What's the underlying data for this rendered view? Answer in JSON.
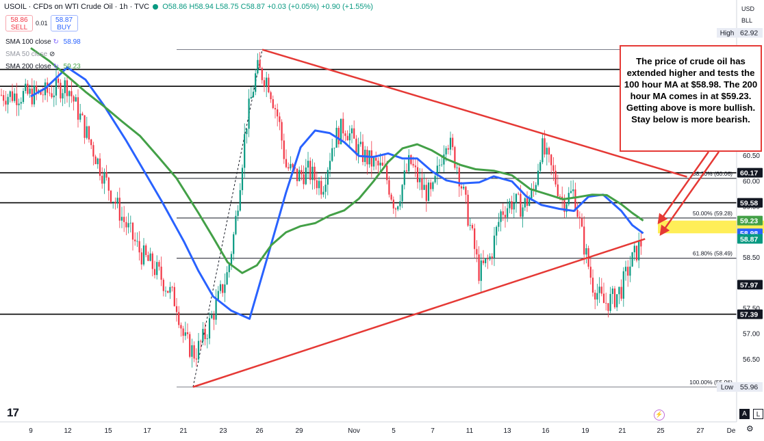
{
  "header": {
    "symbol": "USOIL · CFDs on WTI Crude Oil · 1h · TVC",
    "open": "O58.86",
    "high": "H58.94",
    "low": "L58.75",
    "close": "C58.87",
    "change": "+0.03 (+0.05%)",
    "change2": "+0.90 (+1.55%)"
  },
  "trade": {
    "sell_price": "58.86",
    "sell_label": "SELL",
    "spread": "0.01",
    "buy_price": "58.87",
    "buy_label": "BUY"
  },
  "indicators": [
    {
      "label": "SMA 100 close",
      "value": "58.98",
      "color": "#2962ff",
      "icon": "sma-settings-icon"
    },
    {
      "label": "SMA 50 close",
      "value": "",
      "color": "#9598a1",
      "icon": "eye-hidden-icon"
    },
    {
      "label": "SMA 200 close",
      "value": "59.23",
      "color": "#43a047",
      "icon": "sma-settings-icon"
    }
  ],
  "currency": {
    "code": "USD",
    "unit": "BLL"
  },
  "annotation": "The price of crude oil has extended higher and tests the 100 hour MA at $58.98.  The 200 hour MA comes in at $59.23.  Getting above is more bullish. Stay below is more bearish.",
  "footer": {
    "brand": "17",
    "auto_button": "A",
    "log_button": "L"
  },
  "colors": {
    "sma100": "#2962ff",
    "sma200": "#43a047",
    "trendline": "#e53935",
    "up": "#089981",
    "down": "#f23645",
    "zone": "#ffeb3b"
  },
  "chart_data": {
    "type": "line",
    "ylim": [
      55.7,
      63.05
    ],
    "x_ticks": [
      "9",
      "12",
      "15",
      "17",
      "21",
      "23",
      "26",
      "29",
      "Nov",
      "5",
      "7",
      "11",
      "13",
      "16",
      "19",
      "21",
      "25",
      "27",
      "De"
    ],
    "y_ticks": [
      "62.92",
      "60.50",
      "60.00",
      "59.50",
      "58.50",
      "58.00",
      "57.50",
      "57.00",
      "56.50",
      "55.96"
    ],
    "price_labels": [
      {
        "label": "High",
        "value": "62.92",
        "kind": "plain"
      },
      {
        "label": "",
        "value": "60.17",
        "kind": "black"
      },
      {
        "label": "",
        "value": "59.58",
        "kind": "black"
      },
      {
        "label": "",
        "value": "59.23",
        "kind": "green"
      },
      {
        "label": "",
        "value": "58.98",
        "kind": "blue"
      },
      {
        "label": "",
        "value": "58.87",
        "kind": "teal"
      },
      {
        "label": "",
        "value": "57.97",
        "kind": "black"
      },
      {
        "label": "",
        "value": "57.39",
        "kind": "black"
      },
      {
        "label": "Low",
        "value": "55.96",
        "kind": "plain"
      }
    ],
    "horizontal_levels": [
      62.2,
      61.87,
      60.17,
      59.58,
      57.39
    ],
    "fib_levels": [
      {
        "label": "38.20% (60.06)",
        "value": 60.06
      },
      {
        "label": "50.00% (59.28)",
        "value": 59.28
      },
      {
        "label": "61.80% (58.49)",
        "value": 58.49
      },
      {
        "label": "100.00% (55.96)",
        "value": 55.96
      }
    ],
    "fib_top": 62.59,
    "support_zone": [
      58.98,
      59.23
    ],
    "series": [
      {
        "name": "SMA 100 close",
        "x": [
          0,
          0.4,
          1,
          1.5,
          2,
          2.6,
          3.2,
          3.6,
          4.2,
          4.6,
          5,
          5.5,
          6,
          6.5,
          7,
          7.4,
          7.8,
          8.2,
          8.6,
          9,
          9.4,
          9.8,
          10.2,
          10.6,
          11,
          11.4,
          11.8,
          12.3,
          12.7,
          13.2,
          13.6,
          14,
          14.5,
          14.9,
          15.3,
          15.7,
          16.2,
          16.5,
          16.8
        ],
        "y": [
          61.67,
          61.83,
          62.24,
          62.0,
          61.5,
          60.82,
          60.09,
          59.6,
          58.82,
          58.24,
          57.74,
          57.46,
          57.3,
          58.53,
          59.78,
          60.67,
          61.0,
          60.95,
          60.77,
          60.5,
          60.48,
          60.55,
          60.45,
          60.45,
          60.2,
          60.02,
          59.96,
          59.98,
          60.1,
          60.0,
          59.7,
          59.54,
          59.46,
          59.42,
          59.7,
          59.74,
          59.42,
          59.14,
          58.98
        ]
      },
      {
        "name": "SMA 200 close",
        "x": [
          0,
          0.5,
          1,
          1.5,
          2,
          2.5,
          3,
          3.5,
          4,
          4.6,
          5,
          5.4,
          5.8,
          6.2,
          6.6,
          7,
          7.4,
          7.8,
          8.2,
          8.6,
          9,
          9.4,
          9.8,
          10.2,
          10.6,
          11,
          11.4,
          11.8,
          12.2,
          12.7,
          13.2,
          13.7,
          14.2,
          14.6,
          15,
          15.4,
          15.8,
          16.2,
          16.5,
          16.8
        ],
        "y": [
          62.62,
          62.37,
          62.07,
          61.76,
          61.48,
          61.18,
          60.89,
          60.48,
          60.06,
          59.38,
          58.9,
          58.41,
          58.2,
          58.35,
          58.75,
          59.0,
          59.12,
          59.18,
          59.33,
          59.43,
          59.66,
          60.0,
          60.38,
          60.65,
          60.73,
          60.61,
          60.44,
          60.32,
          60.24,
          60.21,
          60.12,
          59.85,
          59.74,
          59.65,
          59.69,
          59.74,
          59.73,
          59.55,
          59.38,
          59.23
        ]
      }
    ],
    "trendlines": [
      {
        "name": "upper",
        "x": [
          6.35,
          18.0
        ],
        "y": [
          62.59,
          60.09
        ]
      },
      {
        "name": "lower",
        "x": [
          4.45,
          16.85
        ],
        "y": [
          55.96,
          58.87
        ]
      }
    ],
    "source_level_x": 4.45,
    "price_path": {
      "x": [
        0,
        0.5,
        1,
        1.5,
        2,
        2.5,
        3,
        3.5,
        4,
        4.2,
        4.5,
        4.8,
        5.1,
        5.4,
        5.6,
        5.9,
        6.2,
        6.5,
        6.8,
        7,
        7.3,
        7.6,
        8,
        8.3,
        8.6,
        9,
        9.3,
        9.7,
        10,
        10.4,
        10.7,
        11,
        11.4,
        11.7,
        12,
        12.3,
        12.6,
        12.9,
        13.2,
        13.5,
        13.8,
        14,
        14.3,
        14.6,
        14.9,
        15.1,
        15.4,
        15.7,
        16,
        16.2,
        16.4,
        16.6,
        16.8
      ],
      "y": [
        61.7,
        61.75,
        61.9,
        61.0,
        60.1,
        59.3,
        58.6,
        58.2,
        57.6,
        56.9,
        56.6,
        57.0,
        57.6,
        58.2,
        59.1,
        61.1,
        62.2,
        62.0,
        61.2,
        60.3,
        60.1,
        60.2,
        59.9,
        60.8,
        61.1,
        60.6,
        60.4,
        60.2,
        59.5,
        60.4,
        59.9,
        59.7,
        60.9,
        60.3,
        59.3,
        58.2,
        58.5,
        59.4,
        59.6,
        59.5,
        59.8,
        60.7,
        60.2,
        59.6,
        59.8,
        59.0,
        58.0,
        57.6,
        57.7,
        57.9,
        58.3,
        58.6,
        58.87
      ]
    }
  }
}
